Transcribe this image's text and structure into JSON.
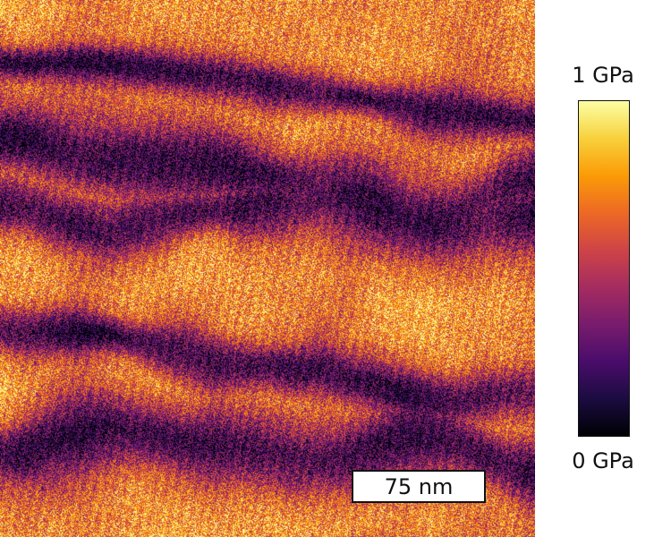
{
  "image": {
    "description_colormap": "inferno",
    "palette": [
      "#000004",
      "#1b0c41",
      "#4a0c6b",
      "#781c6d",
      "#a52c60",
      "#cf4446",
      "#ed6925",
      "#fb9b06",
      "#f7d13d",
      "#fcffa4"
    ]
  },
  "scale_bar": {
    "label": "75 nm"
  },
  "colorbar": {
    "max_label": "1 GPa",
    "min_label": "0 GPa",
    "colormap": "inferno"
  }
}
